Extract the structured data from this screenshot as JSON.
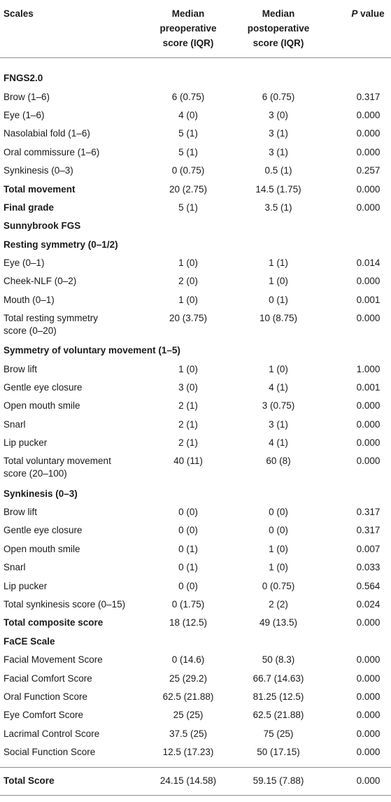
{
  "header": {
    "col1": "Scales",
    "col2_line1": "Median",
    "col2_line2": "preoperative",
    "col2_line3": "score (IQR)",
    "col3_line1": "Median",
    "col3_line2": "postoperative",
    "col3_line3": "score (IQR)",
    "col4_italic": "P",
    "col4_rest": " value"
  },
  "rows": [
    {
      "type": "spacer"
    },
    {
      "type": "section",
      "name": "FNGS2.0"
    },
    {
      "type": "row",
      "name": "Brow (1–6)",
      "pre": "6 (0.75)",
      "post": "6 (0.75)",
      "p": "0.317"
    },
    {
      "type": "row",
      "name": "Eye (1–6)",
      "pre": "4 (0)",
      "post": "3 (0)",
      "p": "0.000"
    },
    {
      "type": "row",
      "name": "Nasolabial fold (1–6)",
      "pre": "5 (1)",
      "post": "3 (1)",
      "p": "0.000"
    },
    {
      "type": "row",
      "name": "Oral commissure (1–6)",
      "pre": "5 (1)",
      "post": "3 (1)",
      "p": "0.000"
    },
    {
      "type": "row",
      "name": "Synkinesis (0–3)",
      "pre": "0 (0.75)",
      "post": "0.5 (1)",
      "p": "0.257"
    },
    {
      "type": "bold",
      "name": "Total movement",
      "pre": "20 (2.75)",
      "post": "14.5 (1.75)",
      "p": "0.000"
    },
    {
      "type": "bold",
      "name": "Final grade",
      "pre": "5 (1)",
      "post": "3.5 (1)",
      "p": "0.000"
    },
    {
      "type": "section",
      "name": "Sunnybrook FGS"
    },
    {
      "type": "section",
      "name": "Resting symmetry (0–1/2)"
    },
    {
      "type": "row",
      "name": "Eye (0–1)",
      "pre": "1 (0)",
      "post": "1 (1)",
      "p": "0.014"
    },
    {
      "type": "row",
      "name": "Cheek-NLF (0–2)",
      "pre": "2 (0)",
      "post": "1 (0)",
      "p": "0.000"
    },
    {
      "type": "row",
      "name": "Mouth (0–1)",
      "pre": "1 (0)",
      "post": "0 (1)",
      "p": "0.001"
    },
    {
      "type": "tall",
      "name1": "Total resting symmetry",
      "name2": "score (0–20)",
      "pre": "20 (3.75)",
      "post": "10 (8.75)",
      "p": "0.000"
    },
    {
      "type": "section",
      "name": "Symmetry of voluntary movement (1–5)"
    },
    {
      "type": "row",
      "name": "Brow lift",
      "pre": "1 (0)",
      "post": "1 (0)",
      "p": "1.000"
    },
    {
      "type": "row",
      "name": "Gentle eye closure",
      "pre": "3 (0)",
      "post": "4 (1)",
      "p": "0.001"
    },
    {
      "type": "row",
      "name": "Open mouth smile",
      "pre": "2 (1)",
      "post": "3 (0.75)",
      "p": "0.000"
    },
    {
      "type": "row",
      "name": "Snarl",
      "pre": "2 (1)",
      "post": "3 (1)",
      "p": "0.000"
    },
    {
      "type": "row",
      "name": "Lip pucker",
      "pre": "2 (1)",
      "post": "4 (1)",
      "p": "0.000"
    },
    {
      "type": "tall",
      "name1": "Total voluntary movement",
      "name2": "score (20–100)",
      "pre": "40 (11)",
      "post": "60 (8)",
      "p": "0.000"
    },
    {
      "type": "section",
      "name": "Synkinesis (0–3)"
    },
    {
      "type": "row",
      "name": "Brow lift",
      "pre": "0 (0)",
      "post": "0 (0)",
      "p": "0.317"
    },
    {
      "type": "row",
      "name": "Gentle eye closure",
      "pre": "0 (0)",
      "post": "0 (0)",
      "p": "0.317"
    },
    {
      "type": "row",
      "name": "Open mouth smile",
      "pre": "0 (1)",
      "post": "1 (0)",
      "p": "0.007"
    },
    {
      "type": "row",
      "name": "Snarl",
      "pre": "0 (1)",
      "post": "1 (0)",
      "p": "0.033"
    },
    {
      "type": "row",
      "name": "Lip pucker",
      "pre": "0 (0)",
      "post": "0 (0.75)",
      "p": "0.564"
    },
    {
      "type": "row",
      "name": "Total synkinesis score (0–15)",
      "pre": "0 (1.75)",
      "post": "2 (2)",
      "p": "0.024"
    },
    {
      "type": "bold",
      "name": "Total composite score",
      "pre": "18 (12.5)",
      "post": "49 (13.5)",
      "p": "0.000"
    },
    {
      "type": "section",
      "name": "FaCE Scale"
    },
    {
      "type": "row",
      "name": "Facial Movement Score",
      "pre": "0 (14.6)",
      "post": "50 (8.3)",
      "p": "0.000"
    },
    {
      "type": "row",
      "name": "Facial Comfort Score",
      "pre": "25 (29.2)",
      "post": "66.7 (14.63)",
      "p": "0.000"
    },
    {
      "type": "row",
      "name": "Oral Function Score",
      "pre": "62.5 (21.88)",
      "post": "81.25 (12.5)",
      "p": "0.000"
    },
    {
      "type": "row",
      "name": "Eye Comfort Score",
      "pre": "25 (25)",
      "post": "62.5 (21.88)",
      "p": "0.000"
    },
    {
      "type": "row",
      "name": "Lacrimal Control Score",
      "pre": "37.5 (25)",
      "post": "75 (25)",
      "p": "0.000"
    },
    {
      "type": "row",
      "name": "Social Function Score",
      "pre": "12.5 (17.23)",
      "post": "50 (17.15)",
      "p": "0.000"
    },
    {
      "type": "gap"
    },
    {
      "type": "total",
      "name": "Total Score",
      "pre": "24.15 (14.58)",
      "post": "59.15 (7.88)",
      "p": "0.000"
    }
  ]
}
